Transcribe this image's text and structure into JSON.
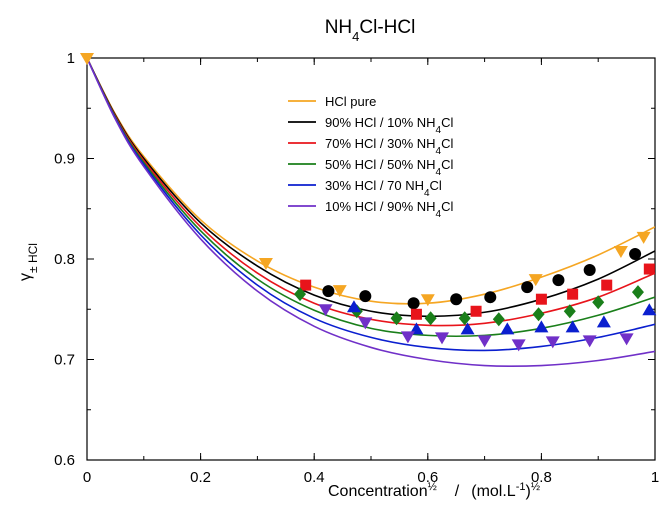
{
  "chart_data": {
    "type": "scatter",
    "title": {
      "main": "NH",
      "sub": "4",
      "rest": "Cl-HCl"
    },
    "xlabel": {
      "a": "Concentration",
      "a_sup": "½",
      "sep": "/",
      "b": "(mol.L",
      "b_sup": "-1",
      "c": ")",
      "c_sup": "½"
    },
    "ylabel": {
      "gamma": "γ",
      "sub": "± HCl"
    },
    "xlim": [
      0,
      1
    ],
    "ylim": [
      0.6,
      1
    ],
    "x_ticks": [
      "0",
      "0.2",
      "0.4",
      "0.6",
      "0.8",
      "1"
    ],
    "y_ticks": [
      "0.6",
      "0.7",
      "0.8",
      "0.9",
      "1"
    ],
    "legend_position": "top-center",
    "series": [
      {
        "name": {
          "main": "HCl pure",
          "sub": "",
          "rest": ""
        },
        "color": "#f5a623",
        "marker": "triangle-down",
        "points": [
          [
            0.0,
            1.0
          ],
          [
            0.315,
            0.796
          ],
          [
            0.445,
            0.769
          ],
          [
            0.6,
            0.76
          ],
          [
            0.79,
            0.78
          ],
          [
            0.94,
            0.808
          ],
          [
            0.98,
            0.822
          ]
        ],
        "curve": [
          [
            0,
            1.0
          ],
          [
            0.05,
            0.944
          ],
          [
            0.1,
            0.902
          ],
          [
            0.2,
            0.839
          ],
          [
            0.3,
            0.798
          ],
          [
            0.4,
            0.772
          ],
          [
            0.5,
            0.758
          ],
          [
            0.6,
            0.756
          ],
          [
            0.7,
            0.765
          ],
          [
            0.8,
            0.782
          ],
          [
            0.9,
            0.804
          ],
          [
            1.0,
            0.832
          ]
        ]
      },
      {
        "name": {
          "main": "90% HCl / 10% NH",
          "sub": "4",
          "rest": "Cl"
        },
        "color": "#000000",
        "marker": "circle",
        "points": [
          [
            0.425,
            0.768
          ],
          [
            0.49,
            0.763
          ],
          [
            0.575,
            0.756
          ],
          [
            0.65,
            0.76
          ],
          [
            0.71,
            0.762
          ],
          [
            0.775,
            0.772
          ],
          [
            0.83,
            0.779
          ],
          [
            0.885,
            0.789
          ],
          [
            0.965,
            0.805
          ]
        ],
        "curve": [
          [
            0,
            1.0
          ],
          [
            0.05,
            0.943
          ],
          [
            0.1,
            0.9
          ],
          [
            0.2,
            0.836
          ],
          [
            0.3,
            0.793
          ],
          [
            0.4,
            0.764
          ],
          [
            0.5,
            0.748
          ],
          [
            0.6,
            0.743
          ],
          [
            0.7,
            0.747
          ],
          [
            0.8,
            0.76
          ],
          [
            0.9,
            0.78
          ],
          [
            1.0,
            0.808
          ]
        ]
      },
      {
        "name": {
          "main": "70% HCl / 30% NH",
          "sub": "4",
          "rest": "Cl"
        },
        "color": "#e8141b",
        "marker": "square",
        "points": [
          [
            0.385,
            0.774
          ],
          [
            0.58,
            0.745
          ],
          [
            0.685,
            0.748
          ],
          [
            0.8,
            0.76
          ],
          [
            0.855,
            0.765
          ],
          [
            0.915,
            0.774
          ],
          [
            0.99,
            0.79
          ]
        ],
        "curve": [
          [
            0,
            1.0
          ],
          [
            0.05,
            0.942
          ],
          [
            0.1,
            0.898
          ],
          [
            0.2,
            0.832
          ],
          [
            0.3,
            0.786
          ],
          [
            0.4,
            0.756
          ],
          [
            0.5,
            0.74
          ],
          [
            0.6,
            0.734
          ],
          [
            0.7,
            0.736
          ],
          [
            0.8,
            0.746
          ],
          [
            0.9,
            0.762
          ],
          [
            1.0,
            0.786
          ]
        ]
      },
      {
        "name": {
          "main": "50% HCl / 50% NH",
          "sub": "4",
          "rest": "Cl"
        },
        "color": "#1a7f1a",
        "marker": "diamond",
        "points": [
          [
            0.375,
            0.765
          ],
          [
            0.475,
            0.748
          ],
          [
            0.545,
            0.741
          ],
          [
            0.605,
            0.741
          ],
          [
            0.665,
            0.741
          ],
          [
            0.725,
            0.74
          ],
          [
            0.795,
            0.745
          ],
          [
            0.85,
            0.748
          ],
          [
            0.9,
            0.757
          ],
          [
            0.97,
            0.767
          ]
        ],
        "curve": [
          [
            0,
            1.0
          ],
          [
            0.05,
            0.941
          ],
          [
            0.1,
            0.896
          ],
          [
            0.2,
            0.828
          ],
          [
            0.3,
            0.78
          ],
          [
            0.4,
            0.749
          ],
          [
            0.5,
            0.731
          ],
          [
            0.6,
            0.724
          ],
          [
            0.7,
            0.724
          ],
          [
            0.8,
            0.731
          ],
          [
            0.9,
            0.744
          ],
          [
            1.0,
            0.762
          ]
        ]
      },
      {
        "name": {
          "main": "30% HCl / 70 NH",
          "sub": "4",
          "rest": "Cl"
        },
        "color": "#0b1fcf",
        "marker": "triangle-up",
        "points": [
          [
            0.47,
            0.752
          ],
          [
            0.58,
            0.73
          ],
          [
            0.67,
            0.73
          ],
          [
            0.74,
            0.73
          ],
          [
            0.8,
            0.732
          ],
          [
            0.855,
            0.732
          ],
          [
            0.91,
            0.737
          ],
          [
            0.99,
            0.749
          ]
        ],
        "curve": [
          [
            0,
            1.0
          ],
          [
            0.05,
            0.94
          ],
          [
            0.1,
            0.894
          ],
          [
            0.2,
            0.824
          ],
          [
            0.3,
            0.774
          ],
          [
            0.4,
            0.741
          ],
          [
            0.5,
            0.722
          ],
          [
            0.6,
            0.712
          ],
          [
            0.7,
            0.709
          ],
          [
            0.8,
            0.713
          ],
          [
            0.9,
            0.722
          ],
          [
            1.0,
            0.735
          ]
        ]
      },
      {
        "name": {
          "main": "10% HCl / 90% NH",
          "sub": "4",
          "rest": "Cl"
        },
        "color": "#7030c8",
        "marker": "triangle-down",
        "points": [
          [
            0.42,
            0.75
          ],
          [
            0.49,
            0.737
          ],
          [
            0.565,
            0.723
          ],
          [
            0.625,
            0.722
          ],
          [
            0.7,
            0.719
          ],
          [
            0.76,
            0.715
          ],
          [
            0.82,
            0.718
          ],
          [
            0.885,
            0.719
          ],
          [
            0.95,
            0.721
          ]
        ],
        "curve": [
          [
            0,
            1.0
          ],
          [
            0.05,
            0.939
          ],
          [
            0.1,
            0.892
          ],
          [
            0.2,
            0.82
          ],
          [
            0.3,
            0.768
          ],
          [
            0.4,
            0.733
          ],
          [
            0.5,
            0.712
          ],
          [
            0.6,
            0.7
          ],
          [
            0.7,
            0.694
          ],
          [
            0.8,
            0.694
          ],
          [
            0.9,
            0.699
          ],
          [
            1.0,
            0.708
          ]
        ]
      }
    ]
  }
}
